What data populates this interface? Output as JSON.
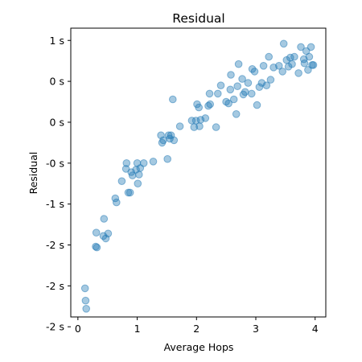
{
  "chart_data": {
    "type": "scatter",
    "title": "Residual",
    "xlabel": "Average Hops",
    "ylabel": "Residual",
    "xlim": [
      -0.12,
      4.18
    ],
    "ylim": [
      -2.38,
      1.15
    ],
    "grid": false,
    "marker_color": "#1f77b4",
    "marker_alpha": 0.4,
    "x_ticks": [
      {
        "value": 0,
        "label": "0"
      },
      {
        "value": 1,
        "label": "1"
      },
      {
        "value": 2,
        "label": "2"
      },
      {
        "value": 3,
        "label": "3"
      },
      {
        "value": 4,
        "label": "4"
      }
    ],
    "y_ticks": [
      {
        "value": 1.0,
        "label": "1 s"
      },
      {
        "value": 0.5,
        "label": "0 s"
      },
      {
        "value": 0.0,
        "label": "0 s"
      },
      {
        "value": -0.5,
        "label": "-0 s"
      },
      {
        "value": -1.0,
        "label": "-1 s"
      },
      {
        "value": -1.5,
        "label": "-2 s"
      },
      {
        "value": -2.0,
        "label": "-2 s"
      },
      {
        "value": -2.5,
        "label": "-2 s"
      }
    ],
    "points": [
      [
        0.12,
        -2.03
      ],
      [
        0.13,
        -2.18
      ],
      [
        0.14,
        -2.28
      ],
      [
        0.3,
        -1.52
      ],
      [
        0.31,
        -1.35
      ],
      [
        0.32,
        -1.53
      ],
      [
        0.43,
        -1.39
      ],
      [
        0.44,
        -1.18
      ],
      [
        0.47,
        -1.42
      ],
      [
        0.51,
        -1.36
      ],
      [
        0.63,
        -0.93
      ],
      [
        0.65,
        -0.98
      ],
      [
        0.74,
        -0.72
      ],
      [
        0.81,
        -0.57
      ],
      [
        0.82,
        -0.5
      ],
      [
        0.85,
        -0.86
      ],
      [
        0.88,
        -0.86
      ],
      [
        0.9,
        -0.61
      ],
      [
        0.92,
        -0.65
      ],
      [
        0.98,
        -0.58
      ],
      [
        1.0,
        -0.5
      ],
      [
        1.01,
        -0.75
      ],
      [
        1.03,
        -0.64
      ],
      [
        1.05,
        -0.56
      ],
      [
        1.11,
        -0.5
      ],
      [
        1.27,
        -0.48
      ],
      [
        1.4,
        -0.16
      ],
      [
        1.42,
        -0.25
      ],
      [
        1.44,
        -0.22
      ],
      [
        1.51,
        -0.45
      ],
      [
        1.53,
        -0.16
      ],
      [
        1.55,
        -0.2
      ],
      [
        1.57,
        -0.16
      ],
      [
        1.6,
        0.28
      ],
      [
        1.62,
        -0.22
      ],
      [
        1.72,
        -0.05
      ],
      [
        1.92,
        0.02
      ],
      [
        1.96,
        -0.06
      ],
      [
        1.99,
        0.02
      ],
      [
        2.01,
        0.22
      ],
      [
        2.04,
        0.18
      ],
      [
        2.05,
        -0.05
      ],
      [
        2.07,
        0.03
      ],
      [
        2.15,
        0.05
      ],
      [
        2.2,
        0.2
      ],
      [
        2.22,
        0.35
      ],
      [
        2.23,
        0.22
      ],
      [
        2.33,
        -0.06
      ],
      [
        2.36,
        0.35
      ],
      [
        2.41,
        0.45
      ],
      [
        2.5,
        0.25
      ],
      [
        2.54,
        0.23
      ],
      [
        2.57,
        0.4
      ],
      [
        2.58,
        0.58
      ],
      [
        2.63,
        0.28
      ],
      [
        2.67,
        0.1
      ],
      [
        2.69,
        0.44
      ],
      [
        2.71,
        0.71
      ],
      [
        2.77,
        0.53
      ],
      [
        2.79,
        0.34
      ],
      [
        2.82,
        0.37
      ],
      [
        2.87,
        0.48
      ],
      [
        2.93,
        0.35
      ],
      [
        2.94,
        0.65
      ],
      [
        2.98,
        0.62
      ],
      [
        3.02,
        0.21
      ],
      [
        3.06,
        0.43
      ],
      [
        3.1,
        0.48
      ],
      [
        3.13,
        0.69
      ],
      [
        3.18,
        0.45
      ],
      [
        3.22,
        0.8
      ],
      [
        3.25,
        0.52
      ],
      [
        3.3,
        0.67
      ],
      [
        3.39,
        0.69
      ],
      [
        3.45,
        0.62
      ],
      [
        3.47,
        0.96
      ],
      [
        3.52,
        0.76
      ],
      [
        3.55,
        0.68
      ],
      [
        3.58,
        0.79
      ],
      [
        3.61,
        0.71
      ],
      [
        3.65,
        0.8
      ],
      [
        3.72,
        0.6
      ],
      [
        3.76,
        0.92
      ],
      [
        3.81,
        0.77
      ],
      [
        3.82,
        0.72
      ],
      [
        3.85,
        0.87
      ],
      [
        3.88,
        0.64
      ],
      [
        3.9,
        0.8
      ],
      [
        3.93,
        0.92
      ],
      [
        3.95,
        0.7
      ],
      [
        3.97,
        0.7
      ]
    ]
  }
}
